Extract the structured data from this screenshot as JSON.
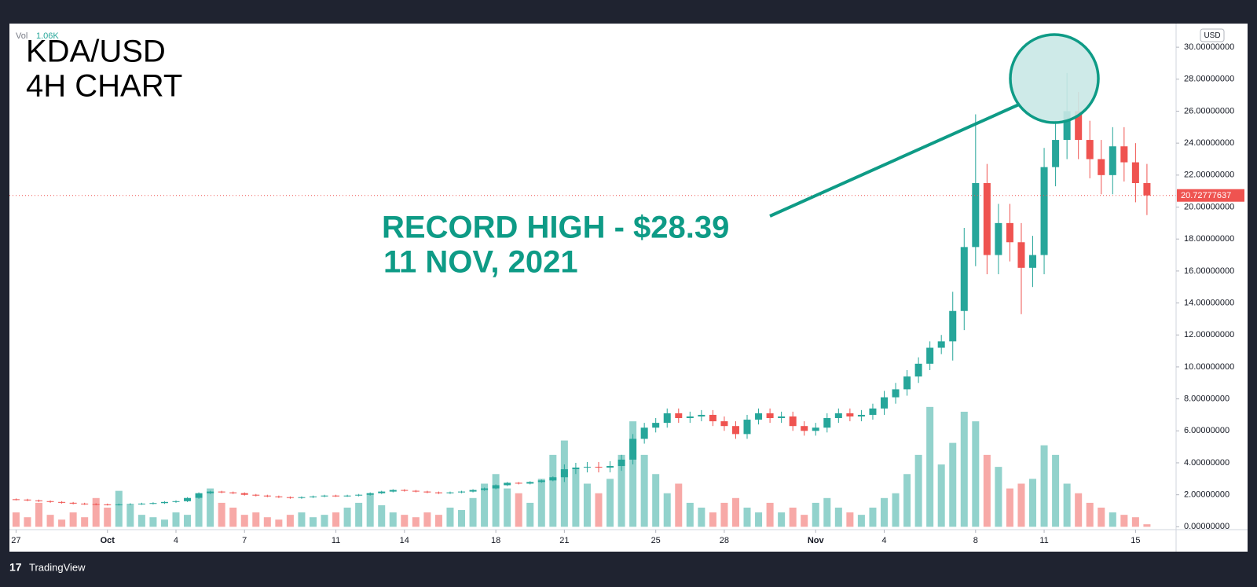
{
  "chart_data": {
    "type": "candlestick",
    "title": "KDA/USD",
    "subtitle": "4H CHART",
    "annotation": {
      "line1": "RECORD HIGH - $28.39",
      "line2": "11 NOV, 2021"
    },
    "currency": "USD",
    "footer": "TradingView",
    "colors": {
      "up": "#26a69a",
      "down": "#ef5350",
      "annotation": "#0e9b86"
    },
    "open": [
      1.72,
      1.7,
      1.65,
      1.6,
      1.55,
      1.5,
      1.45,
      1.42,
      1.4,
      1.38,
      1.4,
      1.42,
      1.45,
      1.48,
      1.55,
      1.6,
      1.8,
      2.1,
      2.2,
      2.15,
      2.1,
      2.0,
      1.95,
      1.9,
      1.85,
      1.8,
      1.85,
      1.9,
      1.95,
      1.92,
      1.95,
      2.0,
      2.1,
      2.2,
      2.3,
      2.25,
      2.2,
      2.15,
      2.1,
      2.15,
      2.2,
      2.3,
      2.4,
      2.6,
      2.75,
      2.7,
      2.8,
      2.9,
      3.1,
      3.6,
      3.7,
      3.75,
      3.7,
      3.8,
      4.2,
      5.5,
      6.2,
      6.5,
      7.1,
      6.8,
      6.9,
      7.0,
      6.6,
      6.3,
      5.8,
      6.7,
      7.1,
      6.8,
      6.9,
      6.3,
      6.0,
      6.2,
      6.8,
      7.1,
      6.9,
      7.0,
      7.4,
      8.1,
      8.6,
      9.4,
      10.2,
      11.2,
      11.6,
      13.5,
      17.5,
      21.5,
      17.0,
      19.0,
      17.8,
      16.2,
      17.0,
      22.5,
      24.2,
      26.0,
      24.2,
      23.0,
      22.0,
      23.8,
      22.8,
      21.5
    ],
    "high": [
      1.77,
      1.75,
      1.7,
      1.65,
      1.6,
      1.55,
      1.5,
      1.47,
      1.45,
      1.45,
      1.47,
      1.5,
      1.53,
      1.6,
      1.65,
      1.85,
      2.15,
      2.25,
      2.25,
      2.2,
      2.15,
      2.05,
      2.0,
      1.95,
      1.9,
      1.9,
      1.95,
      2.0,
      2.0,
      2.0,
      2.05,
      2.15,
      2.25,
      2.35,
      2.35,
      2.3,
      2.25,
      2.2,
      2.2,
      2.25,
      2.35,
      2.45,
      2.65,
      2.8,
      2.8,
      2.85,
      2.95,
      3.15,
      3.9,
      4.0,
      4.05,
      4.05,
      4.1,
      4.5,
      5.8,
      6.5,
      6.8,
      7.4,
      7.4,
      7.2,
      7.3,
      7.3,
      6.9,
      6.6,
      7.0,
      7.4,
      7.4,
      7.2,
      7.2,
      6.6,
      6.5,
      7.1,
      7.4,
      7.4,
      7.3,
      7.7,
      8.5,
      9.0,
      9.8,
      10.6,
      11.6,
      12.0,
      14.7,
      18.7,
      25.8,
      22.7,
      20.2,
      20.2,
      19.0,
      18.2,
      23.7,
      25.4,
      28.39,
      27.2,
      25.4,
      24.2,
      25.0,
      25.0,
      24.0,
      22.7
    ],
    "low": [
      1.65,
      1.6,
      1.55,
      1.5,
      1.45,
      1.4,
      1.37,
      1.35,
      1.33,
      1.33,
      1.35,
      1.37,
      1.4,
      1.43,
      1.5,
      1.55,
      1.75,
      2.05,
      2.1,
      2.05,
      1.95,
      1.9,
      1.85,
      1.8,
      1.75,
      1.75,
      1.8,
      1.85,
      1.87,
      1.87,
      1.9,
      1.95,
      2.05,
      2.15,
      2.2,
      2.15,
      2.1,
      2.05,
      2.05,
      2.1,
      2.15,
      2.25,
      2.35,
      2.55,
      2.65,
      2.65,
      2.75,
      2.85,
      2.8,
      3.3,
      3.4,
      3.4,
      3.4,
      3.5,
      3.9,
      5.2,
      5.9,
      6.2,
      6.5,
      6.5,
      6.6,
      6.3,
      6.0,
      5.5,
      5.5,
      6.4,
      6.5,
      6.5,
      6.0,
      5.7,
      5.7,
      5.9,
      6.5,
      6.6,
      6.6,
      6.7,
      7.0,
      7.7,
      8.2,
      9.0,
      9.8,
      10.8,
      10.4,
      12.3,
      16.3,
      15.8,
      15.8,
      16.6,
      13.3,
      15.0,
      15.8,
      21.3,
      23.0,
      23.0,
      21.8,
      20.8,
      20.8,
      21.6,
      20.3,
      19.5
    ],
    "close": [
      1.7,
      1.65,
      1.6,
      1.55,
      1.5,
      1.45,
      1.42,
      1.4,
      1.38,
      1.4,
      1.42,
      1.45,
      1.48,
      1.55,
      1.6,
      1.8,
      2.1,
      2.2,
      2.15,
      2.1,
      2.0,
      1.95,
      1.9,
      1.85,
      1.8,
      1.85,
      1.9,
      1.95,
      1.92,
      1.95,
      2.0,
      2.1,
      2.2,
      2.3,
      2.25,
      2.2,
      2.15,
      2.1,
      2.15,
      2.2,
      2.3,
      2.4,
      2.6,
      2.75,
      2.7,
      2.8,
      2.9,
      3.1,
      3.6,
      3.7,
      3.75,
      3.7,
      3.8,
      4.2,
      5.5,
      6.2,
      6.5,
      7.1,
      6.8,
      6.9,
      7.0,
      6.6,
      6.3,
      5.8,
      6.7,
      7.1,
      6.8,
      6.9,
      6.3,
      6.0,
      6.2,
      6.8,
      7.1,
      6.9,
      7.0,
      7.4,
      8.1,
      8.6,
      9.4,
      10.2,
      11.2,
      11.6,
      13.5,
      17.5,
      21.5,
      17.0,
      19.0,
      17.8,
      16.2,
      17.0,
      22.5,
      24.2,
      26.0,
      24.2,
      23.0,
      22.0,
      23.8,
      22.8,
      21.5,
      20.72777637
    ],
    "volume": {
      "name": "Vol",
      "axis": "y2",
      "last_value_label": "1.06K",
      "values": [
        6,
        4,
        10,
        5,
        3,
        6,
        4,
        12,
        8,
        15,
        9,
        5,
        4,
        3,
        6,
        5,
        12,
        16,
        10,
        8,
        5,
        6,
        4,
        3,
        5,
        6,
        4,
        5,
        6,
        8,
        10,
        14,
        9,
        6,
        5,
        4,
        6,
        5,
        8,
        7,
        12,
        18,
        22,
        16,
        14,
        10,
        20,
        30,
        36,
        24,
        18,
        14,
        20,
        30,
        44,
        30,
        22,
        14,
        18,
        10,
        8,
        6,
        10,
        12,
        8,
        6,
        10,
        6,
        8,
        5,
        10,
        12,
        8,
        6,
        5,
        8,
        12,
        14,
        22,
        30,
        50,
        26,
        35,
        48,
        44,
        30,
        25,
        16,
        18,
        20,
        34,
        30,
        18,
        14,
        10,
        8,
        6,
        5,
        4,
        1.06
      ]
    },
    "xlim": [
      -0.58,
      101.55
    ],
    "xticks": [
      {
        "value": 0,
        "label": "27"
      },
      {
        "value": 8,
        "label": "Oct"
      },
      {
        "value": 14,
        "label": "4"
      },
      {
        "value": 20,
        "label": "7"
      },
      {
        "value": 28,
        "label": "11"
      },
      {
        "value": 34,
        "label": "14"
      },
      {
        "value": 42,
        "label": "18"
      },
      {
        "value": 48,
        "label": "21"
      },
      {
        "value": 56,
        "label": "25"
      },
      {
        "value": 62,
        "label": "28"
      },
      {
        "value": 70,
        "label": "Nov"
      },
      {
        "value": 76,
        "label": "4"
      },
      {
        "value": 84,
        "label": "8"
      },
      {
        "value": 90,
        "label": "11"
      },
      {
        "value": 98,
        "label": "15"
      }
    ],
    "ylim": [
      -0.18,
      31.48
    ],
    "yticks": [
      {
        "value": 0,
        "label": "0.00000000"
      },
      {
        "value": 2,
        "label": "2.00000000"
      },
      {
        "value": 4,
        "label": "4.00000000"
      },
      {
        "value": 6,
        "label": "6.00000000"
      },
      {
        "value": 8,
        "label": "8.00000000"
      },
      {
        "value": 10,
        "label": "10.00000000"
      },
      {
        "value": 12,
        "label": "12.00000000"
      },
      {
        "value": 14,
        "label": "14.00000000"
      },
      {
        "value": 16,
        "label": "16.00000000"
      },
      {
        "value": 18,
        "label": "18.00000000"
      },
      {
        "value": 20,
        "label": "20.00000000"
      },
      {
        "value": 22,
        "label": "22.00000000"
      },
      {
        "value": 24,
        "label": "24.00000000"
      },
      {
        "value": 26,
        "label": "26.00000000"
      },
      {
        "value": 28,
        "label": "28.00000000"
      },
      {
        "value": 30,
        "label": "30.00000000"
      }
    ],
    "y2lim": [
      -1.18,
      209.9
    ]
  }
}
